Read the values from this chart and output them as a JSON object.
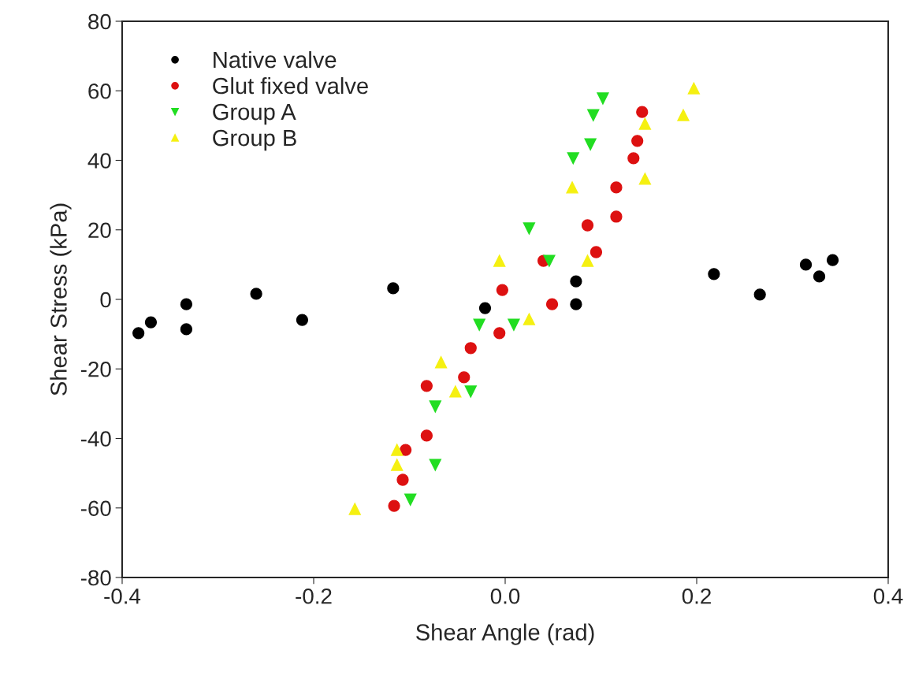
{
  "chart_data": {
    "type": "scatter",
    "xlabel": "Shear Angle (rad)",
    "ylabel": "Shear Stress (kPa)",
    "xlim": [
      -0.4,
      0.4
    ],
    "ylim": [
      -80,
      80
    ],
    "xticks": [
      {
        "value": -0.4,
        "label": "-0.4"
      },
      {
        "value": -0.2,
        "label": "-0.2"
      },
      {
        "value": 0,
        "label": "0.0"
      },
      {
        "value": 0.2,
        "label": "0.2"
      },
      {
        "value": 0.4,
        "label": "0.4"
      }
    ],
    "yticks": [
      {
        "value": -80,
        "label": "-80"
      },
      {
        "value": -60,
        "label": "-60"
      },
      {
        "value": -40,
        "label": "-40"
      },
      {
        "value": -20,
        "label": "-20"
      },
      0,
      20,
      40,
      60,
      80
    ],
    "grid": false,
    "legend": "top left",
    "series": [
      {
        "name": "Native valve",
        "color": "#000000",
        "marker": "circle",
        "x": [
          -0.383,
          -0.37,
          -0.333,
          -0.26,
          -0.117,
          0.074,
          0.218,
          0.314,
          0.342,
          0.328,
          0.266,
          0.074,
          -0.021,
          -0.212,
          -0.333
        ],
        "values": [
          -9.7,
          -6.6,
          -1.4,
          1.6,
          3.2,
          5.2,
          7.3,
          10,
          11.3,
          6.6,
          1.4,
          -1.4,
          -2.5,
          -5.9,
          -8.6
        ]
      },
      {
        "name": "Glut fixed valve",
        "color": "#dd1111",
        "marker": "circle",
        "x": [
          -0.116,
          -0.104,
          -0.082,
          -0.036,
          -0.003,
          0.04,
          0.086,
          0.116,
          0.138,
          0.143,
          0.134,
          0.116,
          0.095,
          0.049,
          -0.006,
          -0.043,
          -0.082,
          -0.107
        ],
        "values": [
          -59.4,
          -43.3,
          -24.9,
          -14,
          2.7,
          11.1,
          21.3,
          32.2,
          45.6,
          53.9,
          40.6,
          23.8,
          13.6,
          -1.4,
          -9.7,
          -22.4,
          -39.2,
          -51.9
        ]
      },
      {
        "name": "Group A",
        "color": "#22dd22",
        "marker": "triangle_down",
        "x": [
          -0.099,
          -0.073,
          -0.027,
          0.025,
          0.071,
          0.092,
          0.102,
          0.089,
          0.046,
          0.009,
          -0.036,
          -0.073
        ],
        "values": [
          -57.6,
          -30.8,
          -7.3,
          20.4,
          40.6,
          53,
          57.8,
          44.6,
          11.1,
          -7.3,
          -26.5,
          -47.6
        ]
      },
      {
        "name": "Group B",
        "color": "#f5f011",
        "marker": "triangle",
        "x": [
          -0.157,
          -0.113,
          -0.067,
          -0.006,
          0.07,
          0.146,
          0.197,
          0.186,
          0.146,
          0.086,
          0.025,
          -0.052,
          -0.113
        ],
        "values": [
          -60.3,
          -43.3,
          -18.1,
          11.1,
          32.2,
          50.5,
          60.7,
          53,
          34.7,
          11.1,
          -5.7,
          -26.5,
          -47.6
        ]
      }
    ]
  }
}
